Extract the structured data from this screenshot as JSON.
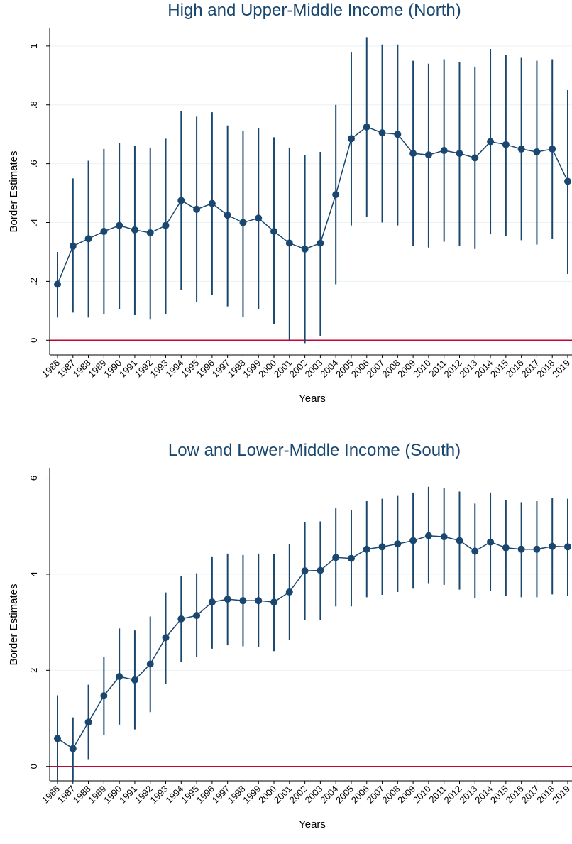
{
  "chart_data": [
    {
      "type": "line",
      "title": "High and Upper-Middle Income (North)",
      "xlabel": "Years",
      "ylabel": "Border Estimates",
      "categories": [
        "1986",
        "1987",
        "1988",
        "1989",
        "1990",
        "1991",
        "1992",
        "1993",
        "1994",
        "1995",
        "1996",
        "1997",
        "1998",
        "1999",
        "2000",
        "2001",
        "2002",
        "2003",
        "2004",
        "2005",
        "2006",
        "2007",
        "2008",
        "2009",
        "2010",
        "2011",
        "2012",
        "2013",
        "2014",
        "2015",
        "2016",
        "2017",
        "2018",
        "2019"
      ],
      "values": [
        0.19,
        0.32,
        0.345,
        0.37,
        0.39,
        0.375,
        0.365,
        0.39,
        0.475,
        0.445,
        0.465,
        0.425,
        0.4,
        0.415,
        0.37,
        0.33,
        0.31,
        0.33,
        0.495,
        0.685,
        0.725,
        0.705,
        0.7,
        0.635,
        0.63,
        0.645,
        0.635,
        0.62,
        0.675,
        0.665,
        0.65,
        0.64,
        0.65,
        0.54
      ],
      "upper": [
        0.3,
        0.55,
        0.61,
        0.65,
        0.67,
        0.66,
        0.655,
        0.685,
        0.78,
        0.76,
        0.775,
        0.73,
        0.71,
        0.72,
        0.69,
        0.655,
        0.63,
        0.64,
        0.8,
        0.98,
        1.03,
        1.005,
        1.005,
        0.95,
        0.94,
        0.955,
        0.945,
        0.93,
        0.99,
        0.97,
        0.96,
        0.95,
        0.955,
        0.85
      ],
      "lower": [
        0.077,
        0.094,
        0.077,
        0.09,
        0.105,
        0.085,
        0.07,
        0.09,
        0.17,
        0.13,
        0.155,
        0.115,
        0.08,
        0.105,
        0.055,
        0.0,
        -0.01,
        0.015,
        0.19,
        0.39,
        0.42,
        0.4,
        0.39,
        0.32,
        0.315,
        0.335,
        0.32,
        0.31,
        0.36,
        0.355,
        0.34,
        0.325,
        0.345,
        0.225
      ],
      "color": "#1a476f",
      "reference_line": 0,
      "reference_color": "#c10534",
      "ylim": [
        -0.05,
        1.06
      ],
      "yticks": [
        0,
        {
          "value": 0.2,
          "label": ".2"
        },
        {
          "value": 0.4,
          "label": ".4"
        },
        {
          "value": 0.6,
          "label": ".6"
        },
        {
          "value": 0.8,
          "label": ".8"
        },
        1
      ],
      "grid": true
    },
    {
      "type": "line",
      "title": "Low and Lower-Middle Income (South)",
      "xlabel": "Years",
      "ylabel": "Border Estimates",
      "categories": [
        "1986",
        "1987",
        "1988",
        "1989",
        "1990",
        "1991",
        "1992",
        "1993",
        "1994",
        "1995",
        "1996",
        "1997",
        "1998",
        "1999",
        "2000",
        "2001",
        "2002",
        "2003",
        "2004",
        "2005",
        "2006",
        "2007",
        "2008",
        "2009",
        "2010",
        "2011",
        "2012",
        "2013",
        "2014",
        "2015",
        "2016",
        "2017",
        "2018",
        "2019"
      ],
      "values": [
        0.58,
        0.37,
        0.92,
        1.47,
        1.87,
        1.8,
        2.13,
        2.68,
        3.07,
        3.14,
        3.42,
        3.48,
        3.45,
        3.45,
        3.42,
        3.63,
        4.07,
        4.08,
        4.35,
        4.33,
        4.52,
        4.57,
        4.63,
        4.7,
        4.8,
        4.78,
        4.7,
        4.48,
        4.67,
        4.55,
        4.52,
        4.52,
        4.58,
        4.57
      ],
      "upper": [
        1.48,
        1.02,
        1.7,
        2.28,
        2.87,
        2.83,
        3.12,
        3.62,
        3.97,
        4.02,
        4.37,
        4.43,
        4.4,
        4.43,
        4.42,
        4.63,
        5.08,
        5.1,
        5.37,
        5.33,
        5.52,
        5.57,
        5.63,
        5.7,
        5.82,
        5.8,
        5.72,
        5.47,
        5.7,
        5.55,
        5.5,
        5.52,
        5.58,
        5.57
      ],
      "lower": [
        -0.3,
        -0.3,
        0.15,
        0.65,
        0.87,
        0.77,
        1.13,
        1.72,
        2.17,
        2.27,
        2.45,
        2.52,
        2.5,
        2.48,
        2.4,
        2.63,
        3.05,
        3.05,
        3.33,
        3.33,
        3.52,
        3.57,
        3.63,
        3.7,
        3.8,
        3.78,
        3.68,
        3.5,
        3.65,
        3.55,
        3.52,
        3.52,
        3.58,
        3.55
      ],
      "color": "#1a476f",
      "reference_line": 0,
      "reference_color": "#c10534",
      "ylim": [
        -0.3,
        6.2
      ],
      "yticks": [
        0,
        2,
        4,
        6
      ],
      "grid": true
    }
  ]
}
